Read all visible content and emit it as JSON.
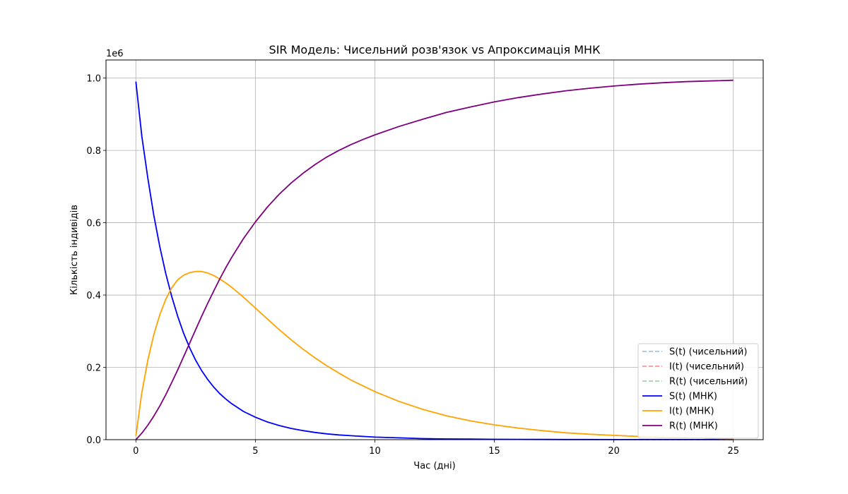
{
  "chart_data": {
    "type": "line",
    "title": "SIR Модель: Чисельний розв'язок vs Апроксимація МНК",
    "xlabel": "Час (дні)",
    "ylabel": "Кількість індивідів",
    "y_offset_label": "1e6",
    "xlim": [
      -1.25,
      26.25
    ],
    "ylim": [
      0,
      1.05
    ],
    "x_ticks": [
      0,
      5,
      10,
      15,
      20,
      25
    ],
    "x_tick_labels": [
      "0",
      "5",
      "10",
      "15",
      "20",
      "25"
    ],
    "y_ticks": [
      0,
      0.2,
      0.4,
      0.6,
      0.8,
      1.0
    ],
    "y_tick_labels": [
      "0.0",
      "0.2",
      "0.4",
      "0.6",
      "0.8",
      "1.0"
    ],
    "grid": true,
    "legend_position": "lower-right",
    "x": [
      0,
      0.25,
      0.5,
      0.75,
      1,
      1.25,
      1.5,
      1.75,
      2,
      2.25,
      2.5,
      2.75,
      3,
      3.25,
      3.5,
      3.75,
      4,
      4.5,
      5,
      5.5,
      6,
      6.5,
      7,
      7.5,
      8,
      8.5,
      9,
      9.5,
      10,
      11,
      12,
      13,
      14,
      15,
      16,
      17,
      18,
      19,
      20,
      21,
      22,
      23,
      24,
      25
    ],
    "series": [
      {
        "name": "S(t) (чисельний)",
        "color": "#1f77b4",
        "dash": "dashed",
        "opacity": 0.5,
        "values": [
          0.99,
          0.839,
          0.723,
          0.621,
          0.534,
          0.46,
          0.396,
          0.341,
          0.294,
          0.254,
          0.22,
          0.191,
          0.167,
          0.146,
          0.128,
          0.113,
          0.1,
          0.078,
          0.062,
          0.049,
          0.039,
          0.031,
          0.025,
          0.02,
          0.016,
          0.013,
          0.011,
          0.009,
          0.007,
          0.005,
          0.003,
          0.002,
          0.0015,
          0.001,
          0.0008,
          0.0006,
          0.0004,
          0.0003,
          0.0002,
          0.0002,
          0.0001,
          0.0001,
          0.0001,
          0.0001
        ]
      },
      {
        "name": "I(t) (чисельний)",
        "color": "#ff0000",
        "dash": "dashed",
        "opacity": 0.5,
        "values": [
          0.01,
          0.13,
          0.22,
          0.29,
          0.345,
          0.388,
          0.42,
          0.442,
          0.455,
          0.462,
          0.465,
          0.465,
          0.461,
          0.454,
          0.445,
          0.434,
          0.422,
          0.394,
          0.364,
          0.334,
          0.304,
          0.276,
          0.25,
          0.226,
          0.204,
          0.184,
          0.165,
          0.149,
          0.133,
          0.106,
          0.084,
          0.066,
          0.052,
          0.041,
          0.032,
          0.025,
          0.019,
          0.015,
          0.012,
          0.009,
          0.007,
          0.006,
          0.004,
          0.003
        ]
      },
      {
        "name": "R(t) (чисельний)",
        "color": "#2ca02c",
        "dash": "dashed",
        "opacity": 0.5,
        "values": [
          0,
          0.018,
          0.04,
          0.065,
          0.093,
          0.124,
          0.158,
          0.193,
          0.23,
          0.267,
          0.304,
          0.341,
          0.376,
          0.41,
          0.443,
          0.474,
          0.503,
          0.556,
          0.602,
          0.643,
          0.679,
          0.71,
          0.737,
          0.761,
          0.782,
          0.8,
          0.816,
          0.83,
          0.843,
          0.866,
          0.886,
          0.905,
          0.92,
          0.934,
          0.946,
          0.956,
          0.965,
          0.972,
          0.978,
          0.983,
          0.987,
          0.99,
          0.992,
          0.994
        ]
      },
      {
        "name": "S(t) (МНК)",
        "color": "#0000ff",
        "dash": "solid",
        "opacity": 1,
        "values": [
          0.99,
          0.839,
          0.723,
          0.621,
          0.534,
          0.46,
          0.396,
          0.341,
          0.294,
          0.254,
          0.22,
          0.191,
          0.167,
          0.146,
          0.128,
          0.113,
          0.1,
          0.078,
          0.062,
          0.049,
          0.039,
          0.031,
          0.025,
          0.02,
          0.016,
          0.013,
          0.011,
          0.009,
          0.007,
          0.005,
          0.003,
          0.002,
          0.0015,
          0.001,
          0.0008,
          0.0006,
          0.0004,
          0.0003,
          0.0002,
          0.0002,
          0.0001,
          0.0001,
          0.0001,
          0.0001
        ]
      },
      {
        "name": "I(t) (МНК)",
        "color": "#ffa500",
        "dash": "solid",
        "opacity": 1,
        "values": [
          0.01,
          0.13,
          0.22,
          0.29,
          0.345,
          0.388,
          0.42,
          0.442,
          0.455,
          0.462,
          0.465,
          0.465,
          0.461,
          0.454,
          0.445,
          0.434,
          0.422,
          0.394,
          0.364,
          0.334,
          0.304,
          0.276,
          0.25,
          0.226,
          0.204,
          0.184,
          0.165,
          0.149,
          0.133,
          0.106,
          0.084,
          0.066,
          0.052,
          0.041,
          0.032,
          0.025,
          0.019,
          0.015,
          0.012,
          0.009,
          0.007,
          0.006,
          0.004,
          0.003
        ]
      },
      {
        "name": "R(t) (МНК)",
        "color": "#800080",
        "dash": "solid",
        "opacity": 1,
        "values": [
          0,
          0.018,
          0.04,
          0.065,
          0.093,
          0.124,
          0.158,
          0.193,
          0.23,
          0.267,
          0.304,
          0.341,
          0.376,
          0.41,
          0.443,
          0.474,
          0.503,
          0.556,
          0.602,
          0.643,
          0.679,
          0.71,
          0.737,
          0.761,
          0.782,
          0.8,
          0.816,
          0.83,
          0.843,
          0.866,
          0.886,
          0.905,
          0.92,
          0.934,
          0.946,
          0.956,
          0.965,
          0.972,
          0.978,
          0.983,
          0.987,
          0.99,
          0.992,
          0.994
        ]
      }
    ]
  }
}
